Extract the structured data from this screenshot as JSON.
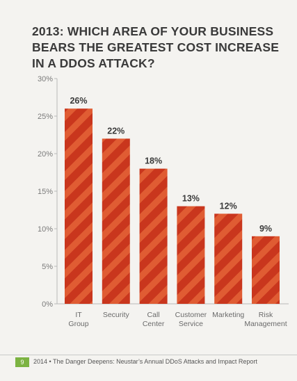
{
  "chart_data": {
    "type": "bar",
    "title": "2013: WHICH AREA OF YOUR BUSINESS BEARS THE GREATEST COST INCREASE IN A DDOS ATTACK?",
    "categories": [
      [
        "IT",
        "Group"
      ],
      [
        "Security"
      ],
      [
        "Call",
        "Center"
      ],
      [
        "Customer",
        "Service"
      ],
      [
        "Marketing"
      ],
      [
        "Risk",
        "Management"
      ]
    ],
    "values": [
      26,
      22,
      18,
      13,
      12,
      9
    ],
    "value_labels": [
      "26%",
      "22%",
      "18%",
      "13%",
      "12%",
      "9%"
    ],
    "ylim": [
      0,
      30
    ],
    "yticks": [
      0,
      5,
      10,
      15,
      20,
      25,
      30
    ],
    "ytick_labels": [
      "0%",
      "5%",
      "10%",
      "15%",
      "20%",
      "25%",
      "30%"
    ],
    "grid": false,
    "colors": {
      "bar": "#c9361d",
      "bar_stripe": "#e05c33",
      "axis": "#b8b8b8",
      "tick_text": "#7a7a7a"
    }
  },
  "footer": {
    "page_number": "9",
    "text": "2014 • The Danger Deepens: Neustar’s Annual DDoS Attacks and Impact Report",
    "accent_color": "#7cb342"
  }
}
